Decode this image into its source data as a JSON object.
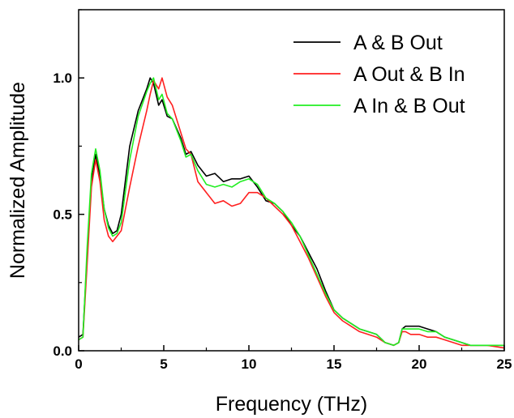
{
  "chart_data": {
    "type": "line",
    "title": "",
    "xlabel": "Frequency (THz)",
    "ylabel": "Normalized Amplitude",
    "xlim": [
      0,
      25
    ],
    "ylim": [
      0,
      1.25
    ],
    "x_ticks": [
      0,
      5,
      10,
      15,
      20,
      25
    ],
    "x_tick_labels": [
      "0",
      "5",
      "10",
      "15",
      "20",
      "25"
    ],
    "y_ticks": [
      0.0,
      0.5,
      1.0
    ],
    "y_tick_labels": [
      "0.0",
      "0.5",
      "1.0"
    ],
    "grid": false,
    "legend_position": "top-right",
    "series": [
      {
        "name": "A & B Out",
        "color": "#000000",
        "x": [
          0,
          0.25,
          0.5,
          0.75,
          1,
          1.25,
          1.5,
          1.75,
          2,
          2.25,
          2.5,
          3,
          3.5,
          4,
          4.2,
          4.4,
          4.7,
          4.9,
          5.2,
          5.5,
          6,
          6.3,
          6.6,
          7,
          7.5,
          8,
          8.5,
          9,
          9.5,
          10,
          10.5,
          11,
          11.5,
          12,
          12.5,
          13,
          13.5,
          14,
          14.5,
          15,
          15.5,
          16,
          16.5,
          17,
          17.5,
          18,
          18.5,
          18.8,
          19,
          19.2,
          19.5,
          20,
          20.5,
          21,
          21.5,
          22,
          22.5,
          23,
          24,
          25
        ],
        "y": [
          0.05,
          0.06,
          0.35,
          0.62,
          0.72,
          0.64,
          0.52,
          0.46,
          0.43,
          0.44,
          0.5,
          0.75,
          0.88,
          0.96,
          1.0,
          0.98,
          0.9,
          0.92,
          0.86,
          0.85,
          0.78,
          0.72,
          0.73,
          0.68,
          0.64,
          0.65,
          0.62,
          0.63,
          0.63,
          0.64,
          0.6,
          0.55,
          0.54,
          0.51,
          0.46,
          0.42,
          0.36,
          0.3,
          0.22,
          0.15,
          0.12,
          0.1,
          0.08,
          0.07,
          0.06,
          0.03,
          0.02,
          0.03,
          0.08,
          0.09,
          0.09,
          0.09,
          0.08,
          0.07,
          0.05,
          0.04,
          0.03,
          0.02,
          0.02,
          0.02
        ]
      },
      {
        "name": "A Out & B In",
        "color": "#ff2020",
        "x": [
          0,
          0.25,
          0.5,
          0.75,
          1,
          1.25,
          1.5,
          1.75,
          2,
          2.25,
          2.5,
          3,
          3.5,
          4,
          4.2,
          4.4,
          4.7,
          4.9,
          5.2,
          5.5,
          6,
          6.3,
          6.6,
          7,
          7.5,
          8,
          8.5,
          9,
          9.5,
          10,
          10.5,
          11,
          11.5,
          12,
          12.5,
          13,
          13.5,
          14,
          14.5,
          15,
          15.5,
          16,
          16.5,
          17,
          17.5,
          18,
          18.5,
          18.8,
          19,
          19.2,
          19.5,
          20,
          20.5,
          21,
          21.5,
          22,
          22.5,
          23,
          24,
          25
        ],
        "y": [
          0.04,
          0.05,
          0.32,
          0.6,
          0.7,
          0.62,
          0.48,
          0.42,
          0.4,
          0.42,
          0.44,
          0.6,
          0.75,
          0.88,
          0.94,
          0.99,
          0.96,
          1.0,
          0.93,
          0.9,
          0.8,
          0.74,
          0.72,
          0.62,
          0.58,
          0.54,
          0.55,
          0.53,
          0.54,
          0.58,
          0.58,
          0.56,
          0.53,
          0.5,
          0.46,
          0.4,
          0.34,
          0.27,
          0.2,
          0.14,
          0.11,
          0.09,
          0.07,
          0.06,
          0.05,
          0.03,
          0.02,
          0.03,
          0.07,
          0.07,
          0.06,
          0.06,
          0.05,
          0.05,
          0.04,
          0.03,
          0.02,
          0.02,
          0.02,
          0.01
        ]
      },
      {
        "name": "A In & B Out",
        "color": "#22ee22",
        "x": [
          0,
          0.25,
          0.5,
          0.75,
          1,
          1.25,
          1.5,
          1.75,
          2,
          2.25,
          2.5,
          3,
          3.5,
          4,
          4.2,
          4.4,
          4.7,
          4.9,
          5.2,
          5.5,
          6,
          6.3,
          6.6,
          7,
          7.5,
          8,
          8.5,
          9,
          9.5,
          10,
          10.5,
          11,
          11.5,
          12,
          12.5,
          13,
          13.5,
          14,
          14.5,
          15,
          15.5,
          16,
          16.5,
          17,
          17.5,
          18,
          18.5,
          18.8,
          19,
          19.2,
          19.5,
          20,
          20.5,
          21,
          21.5,
          22,
          22.5,
          23,
          24,
          25
        ],
        "y": [
          0.04,
          0.05,
          0.38,
          0.65,
          0.74,
          0.66,
          0.52,
          0.45,
          0.42,
          0.43,
          0.47,
          0.7,
          0.86,
          0.95,
          0.98,
          1.0,
          0.92,
          0.94,
          0.87,
          0.85,
          0.77,
          0.71,
          0.72,
          0.66,
          0.61,
          0.6,
          0.61,
          0.6,
          0.62,
          0.63,
          0.61,
          0.56,
          0.54,
          0.51,
          0.47,
          0.42,
          0.35,
          0.28,
          0.21,
          0.15,
          0.12,
          0.1,
          0.08,
          0.07,
          0.06,
          0.03,
          0.02,
          0.03,
          0.08,
          0.08,
          0.08,
          0.08,
          0.07,
          0.07,
          0.05,
          0.04,
          0.03,
          0.02,
          0.02,
          0.02
        ]
      }
    ]
  }
}
